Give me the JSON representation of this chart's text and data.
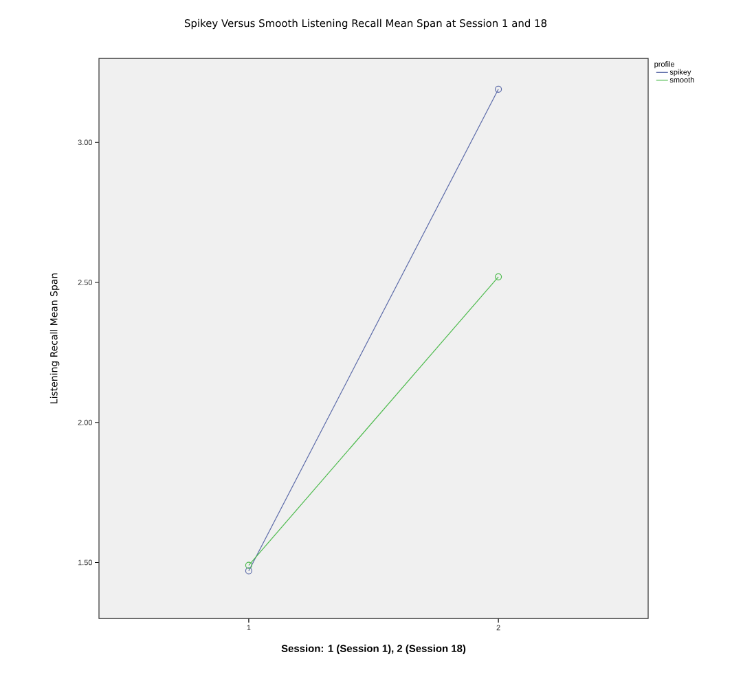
{
  "chart_data": {
    "type": "line",
    "title": "Spikey Versus Smooth Listening Recall Mean Span at Session 1 and 18",
    "xlabel": "Session: 1 (Session 1), 2 (Session 18)",
    "ylabel": "Listening Recall Mean Span",
    "legend_title": "profile",
    "x": [
      1,
      2
    ],
    "series": [
      {
        "name": "spikey",
        "color": "#5b6aa8",
        "values": [
          1.47,
          3.19
        ]
      },
      {
        "name": "smooth",
        "color": "#4cba4c",
        "values": [
          1.49,
          2.52
        ]
      }
    ],
    "xlim": [
      0.4,
      2.6
    ],
    "xticks": [
      1,
      2
    ],
    "ylim": [
      1.3,
      3.3
    ],
    "yticks": [
      {
        "value": 1.5,
        "label": "1.50"
      },
      {
        "value": 2.0,
        "label": "2.00"
      },
      {
        "value": 2.5,
        "label": "2.50"
      },
      {
        "value": 3.0,
        "label": "3.00"
      }
    ],
    "grid": false,
    "legend": "top right",
    "marker": "circle",
    "line_style": "solid"
  }
}
